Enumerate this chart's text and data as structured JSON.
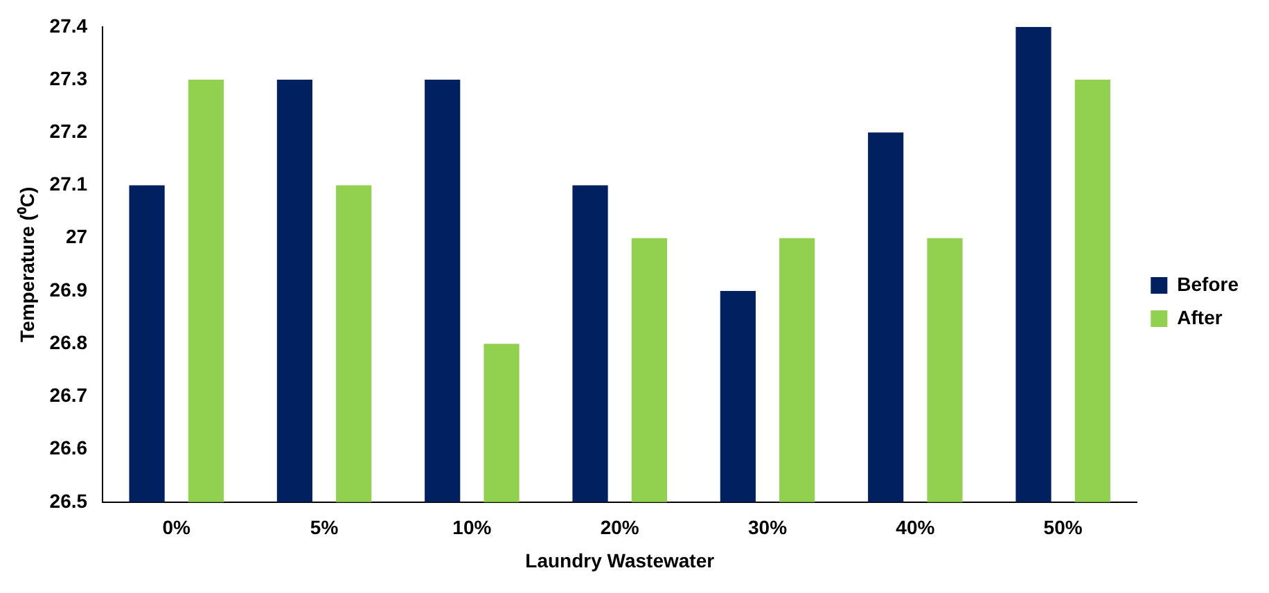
{
  "chart_data": {
    "type": "bar",
    "xlabel": "Laundry Wastewater",
    "ylabel": "Temperature (⁰C)",
    "categories": [
      "0%",
      "5%",
      "10%",
      "20%",
      "30%",
      "40%",
      "50%"
    ],
    "series": [
      {
        "name": "Before",
        "color": "#002060",
        "values": [
          27.1,
          27.3,
          27.3,
          27.1,
          26.9,
          27.2,
          27.4
        ]
      },
      {
        "name": "After",
        "color": "#92d050",
        "values": [
          27.3,
          27.1,
          26.8,
          27.0,
          27.0,
          27.0,
          27.3
        ]
      }
    ],
    "ylim": [
      26.5,
      27.4
    ],
    "yticks": [
      26.5,
      26.6,
      26.7,
      26.8,
      26.9,
      27,
      27.1,
      27.2,
      27.3,
      27.4
    ],
    "grid": false,
    "legend": "right"
  }
}
